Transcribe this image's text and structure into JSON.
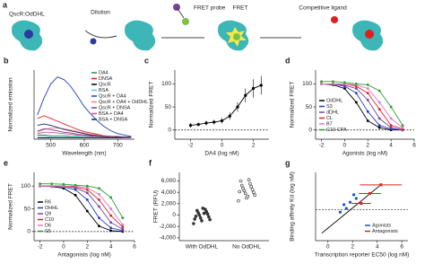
{
  "schematic": {
    "label": "a",
    "complex": "QscR:OdDHL",
    "steps": [
      "Dilution",
      "FRET probe",
      "FRET",
      "Competitive ligand"
    ]
  },
  "chart_data": [
    {
      "type": "line",
      "panel": "b",
      "xlabel": "Wavelength (nm)",
      "ylabel": "Normalized emission",
      "xlim": [
        450,
        750
      ],
      "xticks": [
        500,
        600,
        700
      ],
      "ylim": [
        0,
        1
      ],
      "markers": false,
      "legend": "upper right",
      "x": [
        460,
        480,
        500,
        520,
        540,
        560,
        580,
        600,
        620,
        640,
        660,
        680,
        700,
        720,
        740
      ],
      "series": [
        {
          "name": "DA4",
          "color": "#2e8b3a",
          "values": [
            0.06,
            0.06,
            0.05,
            0.05,
            0.05,
            0.04,
            0.04,
            0.03,
            0.03,
            0.03,
            0.02,
            0.02,
            0.02,
            0.02,
            0.02
          ]
        },
        {
          "name": "DNSA",
          "color": "#e02020",
          "values": [
            0.3,
            0.34,
            0.3,
            0.26,
            0.22,
            0.18,
            0.14,
            0.11,
            0.09,
            0.07,
            0.05,
            0.04,
            0.04,
            0.03,
            0.03
          ]
        },
        {
          "name": "QscR",
          "color": "#000000",
          "values": [
            0.02,
            0.02,
            0.02,
            0.02,
            0.02,
            0.02,
            0.02,
            0.02,
            0.02,
            0.02,
            0.02,
            0.02,
            0.02,
            0.02,
            0.02
          ]
        },
        {
          "name": "BSA",
          "color": "#5bc0de",
          "values": [
            0.04,
            0.04,
            0.03,
            0.03,
            0.03,
            0.03,
            0.03,
            0.03,
            0.03,
            0.03,
            0.03,
            0.03,
            0.03,
            0.03,
            0.03
          ]
        },
        {
          "name": "QscR + DA4",
          "color": "#1f3fbf",
          "values": [
            0.35,
            0.6,
            0.8,
            0.9,
            0.86,
            0.76,
            0.62,
            0.47,
            0.36,
            0.26,
            0.18,
            0.12,
            0.08,
            0.06,
            0.04
          ]
        },
        {
          "name": "QscR + DA4 + OdDHL",
          "color": "#f08080",
          "values": [
            0.1,
            0.14,
            0.16,
            0.16,
            0.15,
            0.13,
            0.11,
            0.09,
            0.07,
            0.06,
            0.05,
            0.04,
            0.03,
            0.03,
            0.03
          ]
        },
        {
          "name": "QscR + DNSA",
          "color": "#7b3fa0",
          "values": [
            0.12,
            0.15,
            0.14,
            0.12,
            0.1,
            0.09,
            0.07,
            0.06,
            0.05,
            0.04,
            0.04,
            0.03,
            0.03,
            0.03,
            0.02
          ]
        },
        {
          "name": "BSA + DA4",
          "color": "#d94f8a",
          "values": [
            0.08,
            0.1,
            0.1,
            0.09,
            0.08,
            0.07,
            0.06,
            0.05,
            0.04,
            0.04,
            0.03,
            0.03,
            0.03,
            0.02,
            0.02
          ]
        },
        {
          "name": "BSA + DNSA",
          "color": "#1a2a6c",
          "values": [
            0.2,
            0.22,
            0.2,
            0.17,
            0.14,
            0.12,
            0.1,
            0.08,
            0.06,
            0.05,
            0.04,
            0.04,
            0.03,
            0.03,
            0.03
          ]
        }
      ]
    },
    {
      "type": "scatter",
      "panel": "c",
      "xlabel": "DA4 (log nM)",
      "ylabel": "Normalized FRET",
      "xlim": [
        -3,
        3
      ],
      "xticks": [
        -2,
        0,
        2
      ],
      "ylim": [
        -20,
        130
      ],
      "yticks": [
        0,
        50,
        100
      ],
      "ref_line": 0,
      "connect": true,
      "color": "#000000",
      "x": [
        -2,
        -1.5,
        -1,
        -0.5,
        0,
        0.5,
        1,
        1.5,
        2,
        2.5
      ],
      "values": [
        10,
        12,
        15,
        17,
        20,
        30,
        50,
        75,
        90,
        97
      ],
      "errors": [
        5,
        4,
        5,
        5,
        6,
        8,
        10,
        15,
        20,
        20
      ]
    },
    {
      "type": "line",
      "panel": "d",
      "xlabel": "Agonists (log nM)",
      "ylabel": "Normalized FRET",
      "xlim": [
        -2.5,
        6
      ],
      "xticks": [
        -2,
        0,
        2,
        4,
        6
      ],
      "ylim": [
        -20,
        130
      ],
      "yticks": [
        0,
        50,
        100
      ],
      "ref_line": 0,
      "markers": true,
      "legend": "lower left",
      "x": [
        -2,
        -1,
        0,
        1,
        2,
        3,
        4,
        5
      ],
      "series": [
        {
          "name": "OdDHL",
          "color": "#000000",
          "values": [
            100,
            98,
            90,
            60,
            20,
            5,
            0,
            0
          ]
        },
        {
          "name": "S3",
          "color": "#1f3fbf",
          "values": [
            100,
            100,
            95,
            80,
            40,
            10,
            2,
            0
          ]
        },
        {
          "name": "dDHL",
          "color": "#7b3fa0",
          "values": [
            100,
            100,
            97,
            90,
            65,
            25,
            5,
            0
          ]
        },
        {
          "name": "CL",
          "color": "#e02020",
          "values": [
            100,
            100,
            100,
            95,
            80,
            45,
            10,
            2
          ]
        },
        {
          "name": "B7",
          "color": "#e377c2",
          "values": [
            100,
            100,
            100,
            98,
            90,
            60,
            25,
            5
          ]
        },
        {
          "name": "C10-CPA",
          "color": "#2ca02c",
          "values": [
            105,
            105,
            103,
            100,
            98,
            85,
            50,
            10
          ]
        }
      ]
    },
    {
      "type": "line",
      "panel": "e",
      "xlabel": "Antagonists (log nM)",
      "ylabel": "Normalized FRET",
      "xlim": [
        -2.5,
        6
      ],
      "xticks": [
        -2,
        0,
        2,
        4,
        6
      ],
      "ylim": [
        -20,
        130
      ],
      "yticks": [
        0,
        50,
        100
      ],
      "ref_line": 0,
      "markers": true,
      "legend": "lower left",
      "x": [
        -2,
        -1,
        0,
        1,
        2,
        3,
        4,
        5
      ],
      "series": [
        {
          "name": "R6",
          "color": "#000000",
          "values": [
            100,
            99,
            95,
            80,
            45,
            12,
            2,
            0
          ]
        },
        {
          "name": "OHHL",
          "color": "#1f3fbf",
          "values": [
            100,
            100,
            98,
            92,
            70,
            30,
            8,
            2
          ]
        },
        {
          "name": "Q9",
          "color": "#7b3fa0",
          "values": [
            100,
            100,
            100,
            96,
            85,
            55,
            20,
            5
          ]
        },
        {
          "name": "C10",
          "color": "#e02020",
          "values": [
            100,
            100,
            100,
            98,
            92,
            70,
            35,
            10
          ]
        },
        {
          "name": "D6",
          "color": "#e377c2",
          "values": [
            100,
            100,
            100,
            100,
            96,
            82,
            50,
            15
          ]
        },
        {
          "name": "S5",
          "color": "#2ca02c",
          "values": [
            105,
            105,
            104,
            102,
            100,
            95,
            75,
            30
          ]
        }
      ]
    },
    {
      "type": "strip",
      "panel": "f",
      "ylabel": "FRET (RFU)",
      "ylim": [
        -4500,
        7500
      ],
      "yticks": [
        {
          "value": -4000,
          "label": "-4,000"
        },
        {
          "value": -2000,
          "label": "-2,000"
        },
        0,
        {
          "value": 2000,
          "label": "2,000"
        },
        {
          "value": 4000,
          "label": "4,000"
        },
        {
          "value": 6000,
          "label": "6,000"
        }
      ],
      "color": "#333333",
      "categories": [
        "With OdDHL",
        "No OdDHL"
      ],
      "values": [
        [
          -1500,
          -1000,
          -800,
          -500,
          -300,
          0,
          200,
          400,
          600,
          800,
          1000,
          -200,
          300,
          -700,
          1200
        ],
        [
          2500,
          3000,
          3500,
          3800,
          4000,
          4300,
          4500,
          4700,
          5000,
          5200,
          5500,
          6000,
          6200,
          4100,
          3300
        ]
      ]
    },
    {
      "type": "scatter",
      "panel": "g",
      "xlabel": "Transcription reporter EC50 (log nM)",
      "ylabel": "Binding affinity Kd (log nM)",
      "xlim": [
        -1,
        6.5
      ],
      "xticks": [
        0,
        2,
        4,
        6
      ],
      "ylim": [
        -1.5,
        4
      ],
      "ref_line": 1,
      "legend": "lower right",
      "fit_line": {
        "x": [
          -0.5,
          4.3
        ],
        "y": [
          -0.9,
          3.0
        ]
      },
      "series": [
        {
          "name": "Agonists",
          "color": "#1f4fbf",
          "x": [
            1.0,
            1.3,
            1.5,
            1.8,
            2.1,
            2.3
          ],
          "values": [
            0.8,
            1.4,
            1.1,
            1.6,
            2.2,
            1.9
          ]
        },
        {
          "name": "Antagonists",
          "color": "#d62728",
          "x": [
            2.7,
            3.4,
            4.3
          ],
          "values": [
            1.5,
            2.3,
            3.0
          ],
          "xerr": [
            0.8,
            0.9,
            1.7
          ]
        }
      ]
    }
  ]
}
